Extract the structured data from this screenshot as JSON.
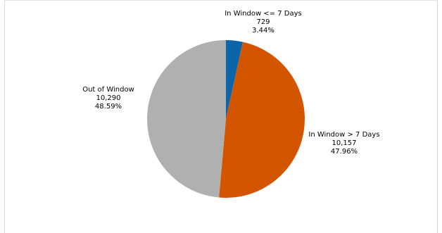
{
  "chart_data": {
    "type": "pie",
    "title": "",
    "start_angle_deg": 0,
    "direction": "clockwise",
    "slices": [
      {
        "label": "In Window <= 7 Days",
        "value": 729,
        "value_text": "729",
        "percent_text": "3.44%",
        "color": "#0e64a8"
      },
      {
        "label": "In Window > 7 Days",
        "value": 10157,
        "value_text": "10,157",
        "percent_text": "47.96%",
        "color": "#d45500"
      },
      {
        "label": "Out of Window",
        "value": 10290,
        "value_text": "10,290",
        "percent_text": "48.59%",
        "color": "#b0b0b0"
      }
    ],
    "legend": "none",
    "labels": "outside"
  }
}
